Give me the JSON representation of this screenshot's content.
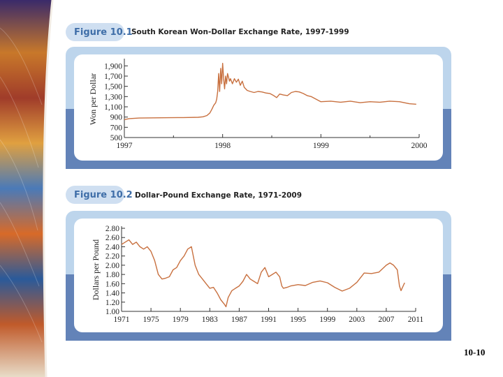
{
  "slide": {
    "number": "10-10"
  },
  "colors": {
    "series": "#c8703f",
    "title_blue": "#3f6ea8",
    "label_pill_bg": "#cfdff1",
    "panel_light": "#bdd5ec",
    "panel_dark": "#6383b8",
    "plot_bg": "#ffffff",
    "axis": "#333333"
  },
  "chart_data": [
    {
      "type": "line",
      "figure_label": "Figure 10.1",
      "title": "South Korean Won-Dollar Exchange Rate, 1997-1999",
      "xlabel": "",
      "ylabel": "Won per Dollar",
      "xlim": [
        1997,
        2000
      ],
      "ylim": [
        500,
        2000
      ],
      "xticks": [
        {
          "value": 1997,
          "label": "1997"
        },
        {
          "value": 1998,
          "label": "1998"
        },
        {
          "value": 1999,
          "label": "1999"
        },
        {
          "value": 2000,
          "label": "2000"
        }
      ],
      "yticks": [
        {
          "value": 500,
          "label": "500"
        },
        {
          "value": 700,
          "label": "700"
        },
        {
          "value": 900,
          "label": "900"
        },
        {
          "value": 1100,
          "label": "1,100"
        },
        {
          "value": 1300,
          "label": "1,300"
        },
        {
          "value": 1500,
          "label": "1,500"
        },
        {
          "value": 1700,
          "label": "1,700"
        },
        {
          "value": 1900,
          "label": "1,900"
        }
      ],
      "series": [
        {
          "name": "Won per Dollar",
          "x": [
            1997.0,
            1997.05,
            1997.15,
            1997.3,
            1997.45,
            1997.6,
            1997.75,
            1997.8,
            1997.84,
            1997.87,
            1997.89,
            1997.91,
            1997.93,
            1997.94,
            1997.95,
            1997.96,
            1997.97,
            1997.98,
            1997.99,
            1998.0,
            1998.01,
            1998.02,
            1998.03,
            1998.04,
            1998.05,
            1998.06,
            1998.07,
            1998.08,
            1998.1,
            1998.12,
            1998.14,
            1998.16,
            1998.18,
            1998.2,
            1998.22,
            1998.25,
            1998.28,
            1998.32,
            1998.36,
            1998.4,
            1998.44,
            1998.48,
            1998.52,
            1998.55,
            1998.58,
            1998.62,
            1998.66,
            1998.7,
            1998.74,
            1998.78,
            1998.82,
            1998.86,
            1998.9,
            1998.95,
            1999.0,
            1999.1,
            1999.2,
            1999.3,
            1999.4,
            1999.5,
            1999.6,
            1999.7,
            1999.8,
            1999.9,
            1999.97
          ],
          "y": [
            850,
            870,
            880,
            885,
            887,
            890,
            895,
            905,
            930,
            980,
            1050,
            1130,
            1180,
            1250,
            1400,
            1750,
            1400,
            1850,
            1550,
            1950,
            1650,
            1450,
            1700,
            1550,
            1750,
            1680,
            1600,
            1650,
            1550,
            1650,
            1580,
            1640,
            1520,
            1600,
            1480,
            1420,
            1400,
            1380,
            1400,
            1390,
            1370,
            1360,
            1320,
            1280,
            1350,
            1330,
            1320,
            1380,
            1400,
            1390,
            1360,
            1320,
            1300,
            1250,
            1200,
            1210,
            1190,
            1210,
            1180,
            1200,
            1190,
            1210,
            1200,
            1160,
            1150
          ]
        }
      ]
    },
    {
      "type": "line",
      "figure_label": "Figure 10.2",
      "title": "Dollar-Pound Exchange Rate, 1971-2009",
      "xlabel": "",
      "ylabel": "Dollars per Pound",
      "xlim": [
        1971,
        2011
      ],
      "ylim": [
        1.0,
        2.8
      ],
      "xticks": [
        {
          "value": 1971,
          "label": "1971"
        },
        {
          "value": 1975,
          "label": "1975"
        },
        {
          "value": 1979,
          "label": "1979"
        },
        {
          "value": 1983,
          "label": "1983"
        },
        {
          "value": 1987,
          "label": "1987"
        },
        {
          "value": 1991,
          "label": "1991"
        },
        {
          "value": 1995,
          "label": "1995"
        },
        {
          "value": 1999,
          "label": "1999"
        },
        {
          "value": 2003,
          "label": "2003"
        },
        {
          "value": 2007,
          "label": "2007"
        },
        {
          "value": 2011,
          "label": "2011"
        }
      ],
      "yticks": [
        {
          "value": 1.0,
          "label": "1.00"
        },
        {
          "value": 1.2,
          "label": "1.20"
        },
        {
          "value": 1.4,
          "label": "1.40"
        },
        {
          "value": 1.6,
          "label": "1.60"
        },
        {
          "value": 1.8,
          "label": "1.80"
        },
        {
          "value": 2.0,
          "label": "2.00"
        },
        {
          "value": 2.2,
          "label": "2.20"
        },
        {
          "value": 2.4,
          "label": "2.40"
        },
        {
          "value": 2.6,
          "label": "2.60"
        },
        {
          "value": 2.8,
          "label": "2.80"
        }
      ],
      "series": [
        {
          "name": "Dollars per Pound",
          "x": [
            1971.0,
            1971.5,
            1972.0,
            1972.5,
            1973.0,
            1973.5,
            1974.0,
            1974.5,
            1975.0,
            1975.5,
            1976.0,
            1976.5,
            1977.0,
            1977.5,
            1978.0,
            1978.5,
            1979.0,
            1979.5,
            1980.0,
            1980.5,
            1981.0,
            1981.5,
            1982.0,
            1982.5,
            1983.0,
            1983.5,
            1984.0,
            1984.5,
            1985.0,
            1985.2,
            1985.5,
            1986.0,
            1986.5,
            1987.0,
            1987.5,
            1988.0,
            1988.5,
            1989.0,
            1989.5,
            1990.0,
            1990.5,
            1991.0,
            1991.5,
            1992.0,
            1992.5,
            1992.8,
            1993.0,
            1993.5,
            1994.0,
            1995.0,
            1996.0,
            1997.0,
            1998.0,
            1999.0,
            2000.0,
            2001.0,
            2002.0,
            2003.0,
            2004.0,
            2005.0,
            2006.0,
            2007.0,
            2007.5,
            2008.0,
            2008.5,
            2008.8,
            2009.0,
            2009.5
          ],
          "y": [
            2.45,
            2.5,
            2.55,
            2.45,
            2.5,
            2.4,
            2.35,
            2.4,
            2.3,
            2.1,
            1.8,
            1.7,
            1.72,
            1.75,
            1.9,
            1.95,
            2.1,
            2.2,
            2.35,
            2.4,
            2.0,
            1.8,
            1.7,
            1.6,
            1.5,
            1.52,
            1.4,
            1.25,
            1.15,
            1.1,
            1.3,
            1.45,
            1.5,
            1.55,
            1.65,
            1.8,
            1.7,
            1.65,
            1.6,
            1.85,
            1.95,
            1.75,
            1.8,
            1.85,
            1.75,
            1.55,
            1.5,
            1.52,
            1.55,
            1.58,
            1.56,
            1.63,
            1.66,
            1.62,
            1.52,
            1.44,
            1.5,
            1.63,
            1.83,
            1.82,
            1.85,
            2.0,
            2.05,
            2.0,
            1.9,
            1.55,
            1.45,
            1.62
          ]
        }
      ]
    }
  ]
}
